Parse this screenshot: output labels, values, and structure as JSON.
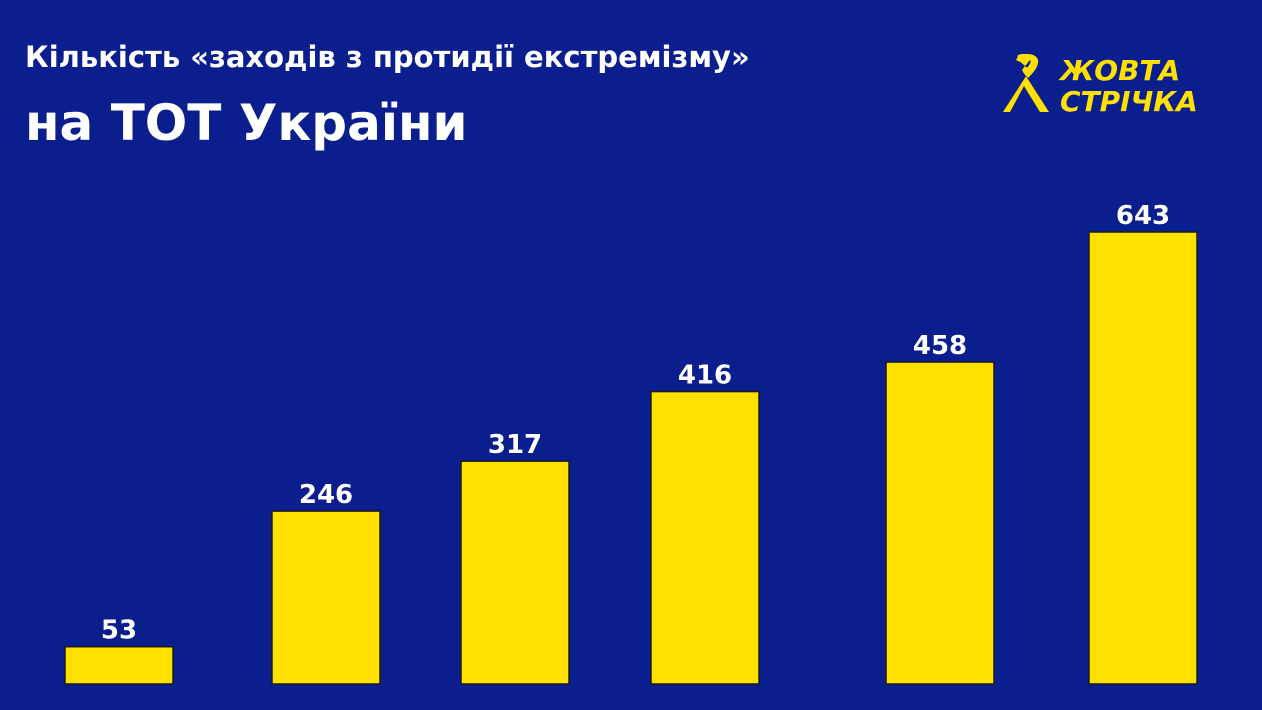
{
  "chart_data": {
    "type": "bar",
    "title": "Кількість  «заходів з протидії екстремізму»",
    "subtitle": "на ТОТ України",
    "logo": [
      "ЖОВТА",
      "СТРІЧКА"
    ],
    "categories": [
      null,
      null,
      null,
      null,
      null,
      null
    ],
    "values": [
      53,
      246,
      317,
      416,
      458,
      643
    ],
    "color": "#ffe100"
  }
}
